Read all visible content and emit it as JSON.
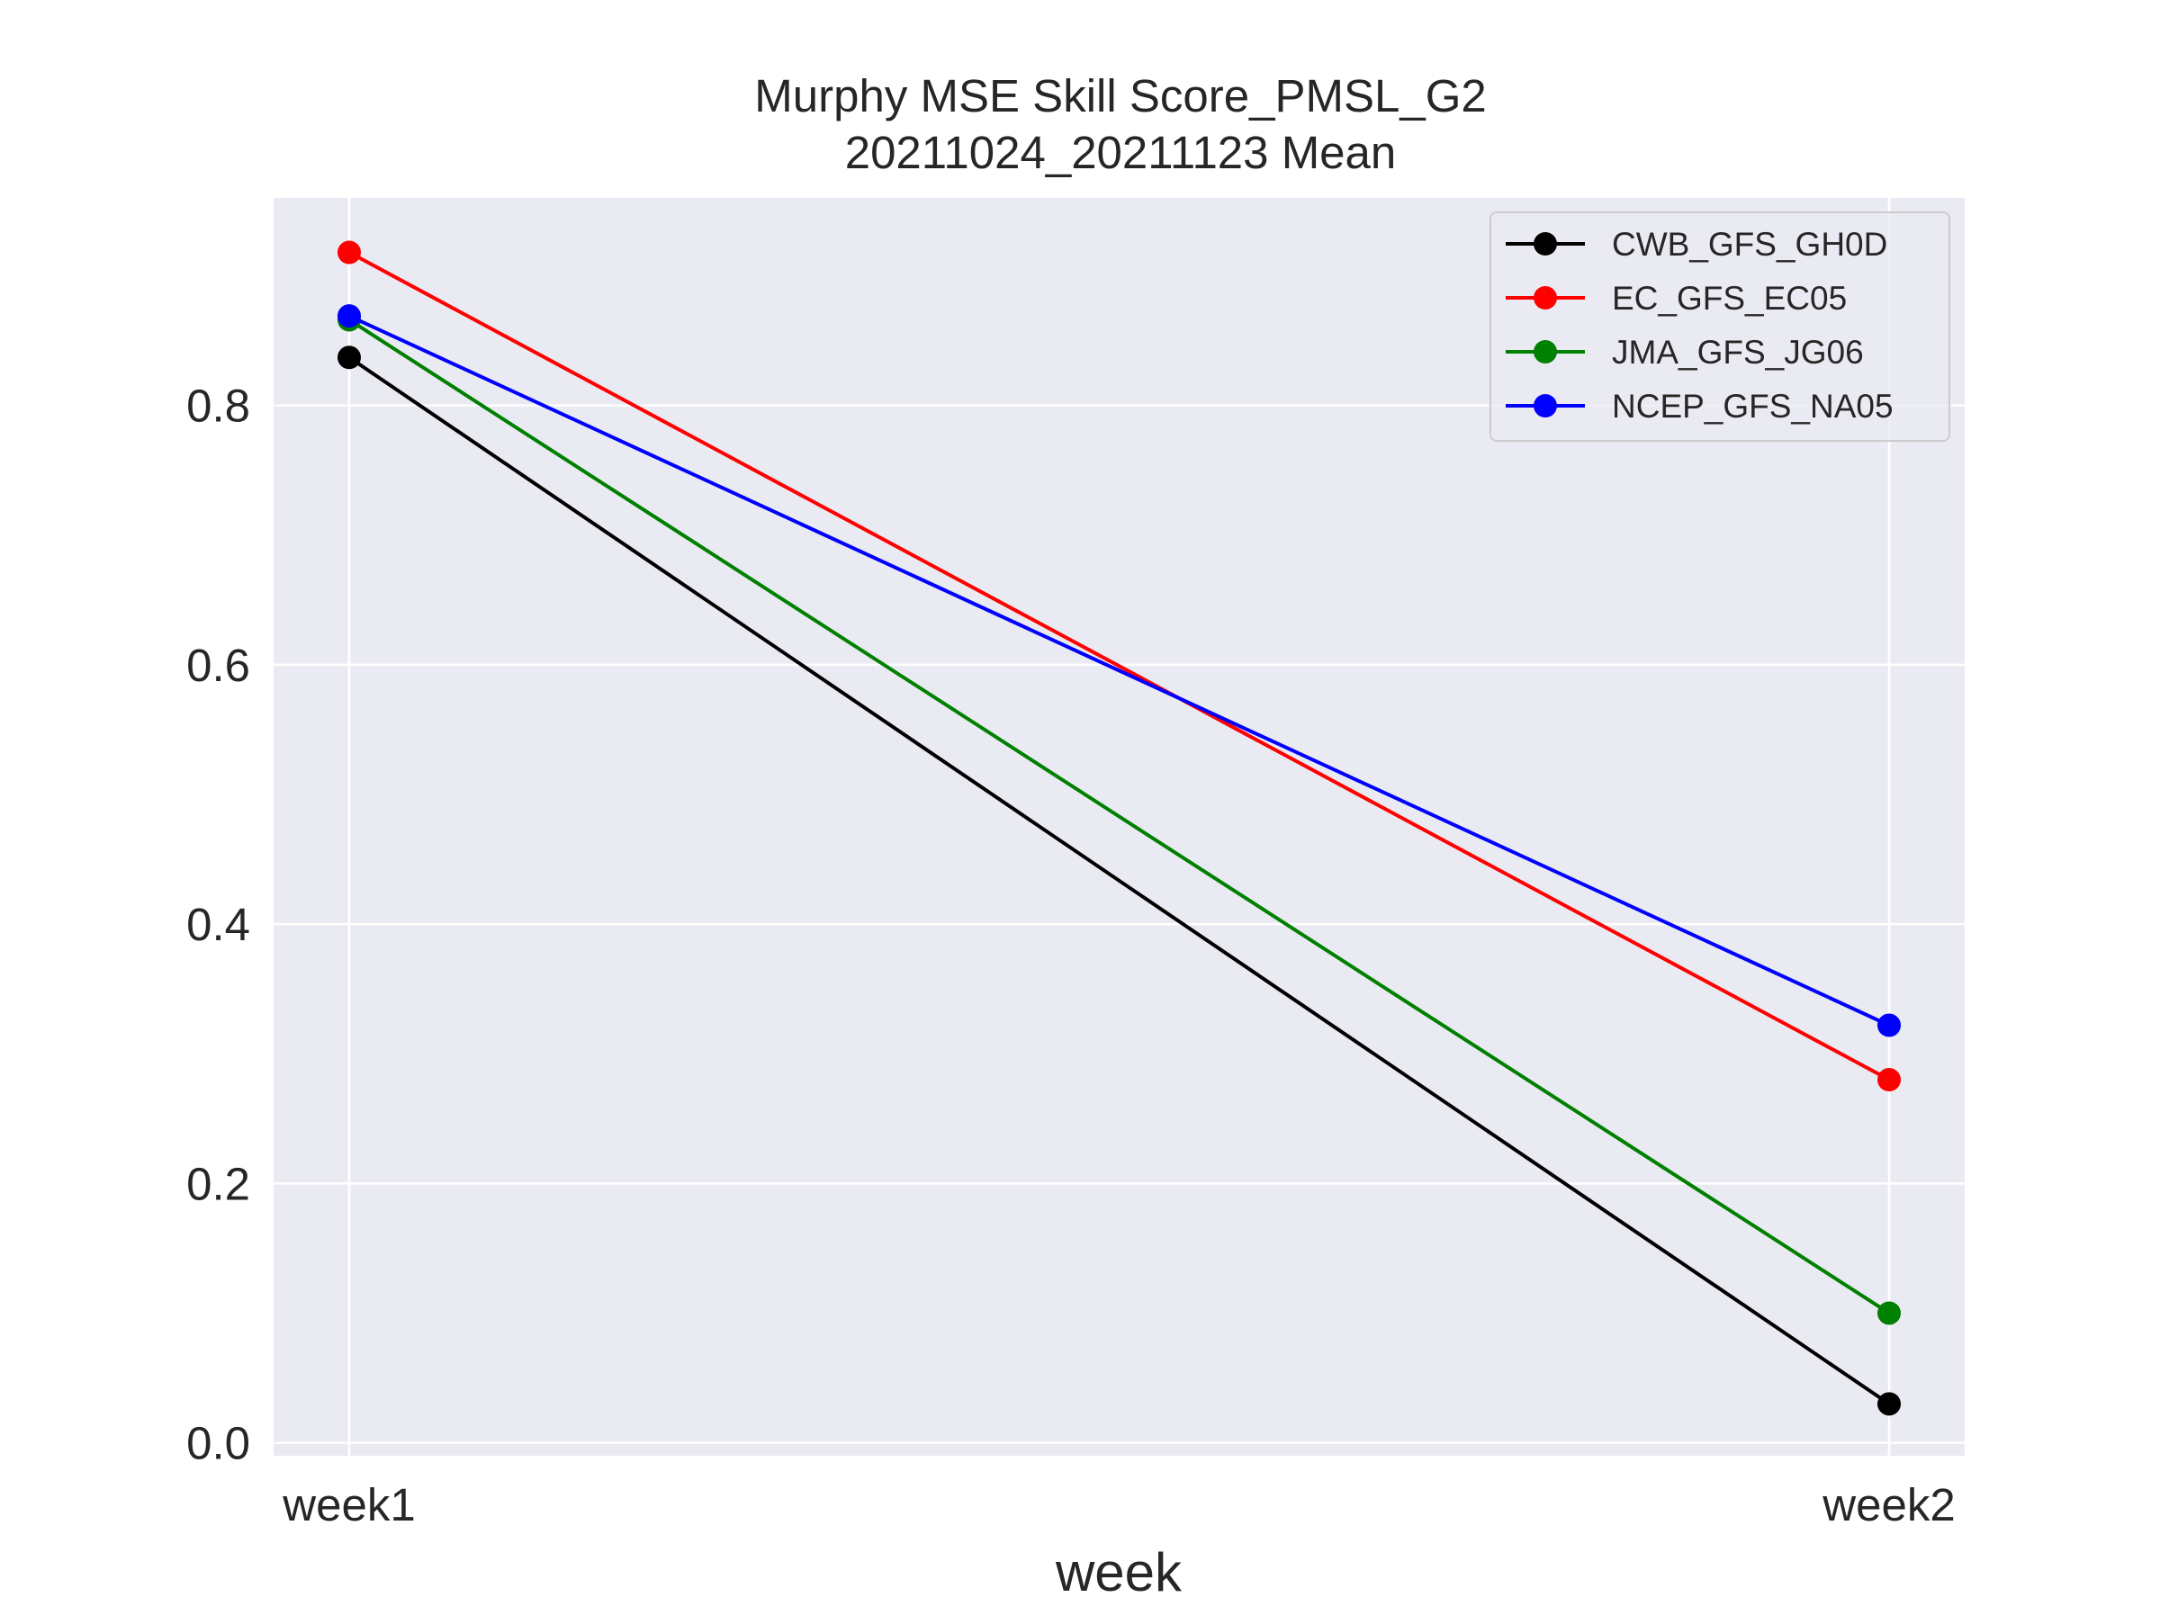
{
  "chart_data": {
    "type": "line",
    "title": [
      "Murphy MSE Skill Score_PMSL_G2",
      "20211024_20211123 Mean"
    ],
    "xlabel": "week",
    "ylabel": "",
    "categories": [
      "week1",
      "week2"
    ],
    "ylim": [
      -0.01,
      0.96
    ],
    "yticks": [
      0.0,
      0.2,
      0.4,
      0.6,
      0.8
    ],
    "ytick_labels": [
      "0.0",
      "0.2",
      "0.4",
      "0.6",
      "0.8"
    ],
    "grid": true,
    "legend_position": "top-right",
    "series": [
      {
        "name": "CWB_GFS_GH0D",
        "color": "#000000",
        "values": [
          0.837,
          0.03
        ]
      },
      {
        "name": "EC_GFS_EC05",
        "color": "#ff0000",
        "values": [
          0.918,
          0.28
        ]
      },
      {
        "name": "JMA_GFS_JG06",
        "color": "#008000",
        "values": [
          0.866,
          0.1
        ]
      },
      {
        "name": "NCEP_GFS_NA05",
        "color": "#0000ff",
        "values": [
          0.869,
          0.322
        ]
      }
    ]
  }
}
